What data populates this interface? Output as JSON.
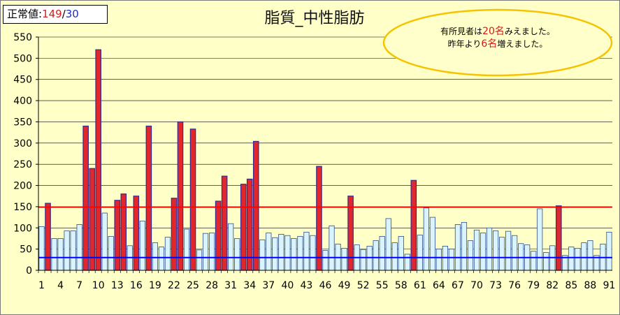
{
  "normal_box": {
    "label": "正常値:",
    "high": "149",
    "sep": "/",
    "low": "30"
  },
  "callout": {
    "line1_pre": "有所見者は",
    "line1_num": "20名",
    "line1_post": "みえました。",
    "line2_pre": "昨年より",
    "line2_num": "6名",
    "line2_post": "増えました。"
  },
  "colors": {
    "background": "#ffffc8",
    "normal_bar": "#d9f3ff",
    "flag_bar": "#e0272c",
    "upper_line": "#ff0000",
    "lower_line": "#0000ff",
    "callout_fill": "#ffffcc",
    "callout_border": "#f5c400"
  },
  "chart_data": {
    "type": "bar",
    "title": "脂質_中性脂肪",
    "ylim": [
      0,
      550
    ],
    "yticks": [
      0,
      50,
      100,
      150,
      200,
      250,
      300,
      350,
      400,
      450,
      500,
      550
    ],
    "xtick_labels": [
      "1",
      "4",
      "7",
      "10",
      "13",
      "16",
      "19",
      "22",
      "25",
      "28",
      "31",
      "34",
      "37",
      "40",
      "43",
      "46",
      "49",
      "52",
      "55",
      "58",
      "61",
      "64",
      "67",
      "70",
      "73",
      "76",
      "79",
      "82",
      "85",
      "88",
      "91"
    ],
    "grid": true,
    "reference_lines": [
      {
        "value": 149,
        "color": "red"
      },
      {
        "value": 30,
        "color": "blue"
      }
    ],
    "x": [
      1,
      2,
      3,
      4,
      5,
      6,
      7,
      8,
      9,
      10,
      11,
      12,
      13,
      14,
      15,
      16,
      17,
      18,
      19,
      20,
      21,
      22,
      23,
      24,
      25,
      26,
      27,
      28,
      29,
      30,
      31,
      32,
      33,
      34,
      35,
      36,
      37,
      38,
      39,
      40,
      41,
      42,
      43,
      44,
      45,
      46,
      47,
      48,
      49,
      50,
      51,
      52,
      53,
      54,
      55,
      56,
      57,
      58,
      59,
      60,
      61,
      62,
      63,
      64,
      65,
      66,
      67,
      68,
      69,
      70,
      71,
      72,
      73,
      74,
      75,
      76,
      77,
      78,
      79,
      80,
      81,
      82,
      83,
      84,
      85,
      86,
      87,
      88,
      89,
      90,
      91
    ],
    "values": [
      103,
      158,
      75,
      75,
      93,
      93,
      108,
      340,
      240,
      520,
      135,
      80,
      165,
      180,
      58,
      175,
      116,
      340,
      65,
      55,
      78,
      170,
      350,
      97,
      333,
      48,
      87,
      88,
      163,
      222,
      110,
      75,
      203,
      215,
      304,
      72,
      88,
      77,
      85,
      82,
      75,
      80,
      90,
      82,
      245,
      47,
      105,
      62,
      52,
      175,
      60,
      49,
      57,
      70,
      80,
      122,
      65,
      80,
      38,
      212,
      83,
      147,
      125,
      50,
      57,
      50,
      108,
      113,
      70,
      95,
      88,
      100,
      93,
      78,
      92,
      82,
      63,
      60,
      45,
      145,
      42,
      58,
      152,
      35,
      55,
      52,
      65,
      70,
      35,
      62,
      90
    ],
    "flagged": [
      2,
      8,
      9,
      10,
      13,
      14,
      16,
      18,
      22,
      23,
      25,
      29,
      30,
      33,
      34,
      35,
      45,
      50,
      60,
      83
    ]
  }
}
